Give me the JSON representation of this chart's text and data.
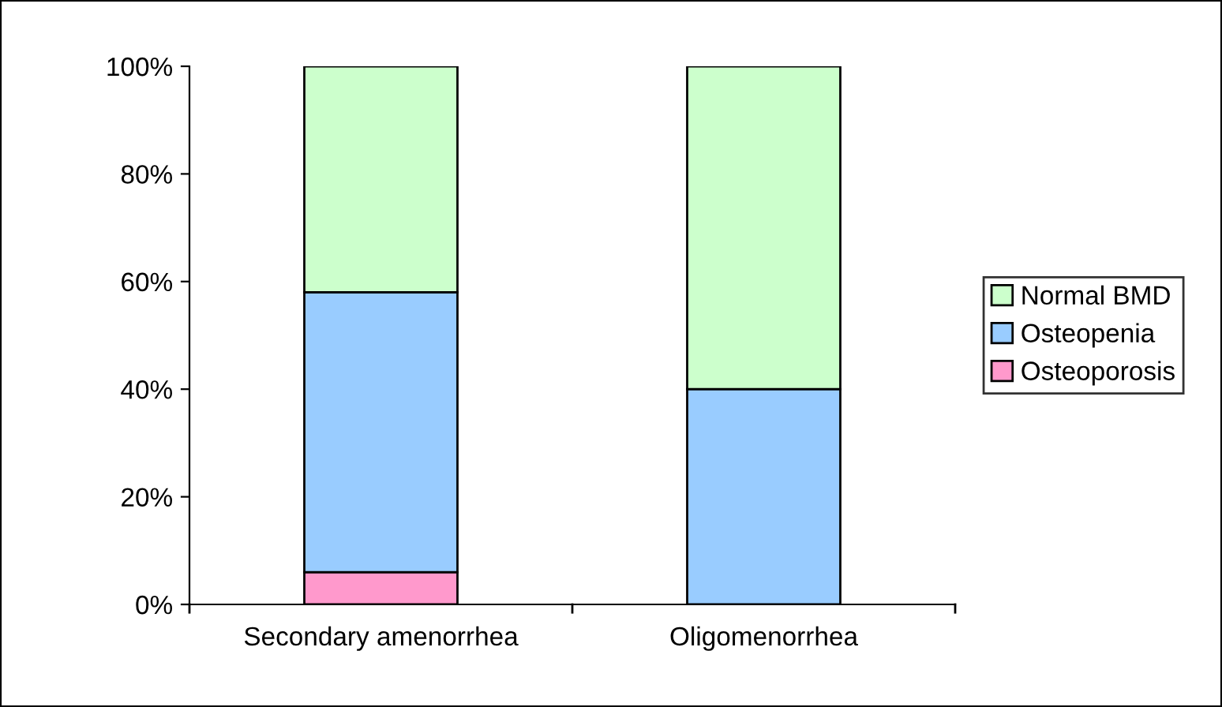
{
  "chart_data": {
    "type": "bar",
    "stacked": true,
    "categories": [
      "Secondary amenorrhea",
      "Oligomenorrhea"
    ],
    "series": [
      {
        "name": "Osteoporosis",
        "color": "#ff99cc",
        "values": [
          6,
          0
        ]
      },
      {
        "name": "Osteopenia",
        "color": "#99ccff",
        "values": [
          52,
          40
        ]
      },
      {
        "name": "Normal BMD",
        "color": "#ccffcc",
        "values": [
          42,
          60
        ]
      }
    ],
    "ylim": [
      0,
      100
    ],
    "yticks": [
      {
        "value": 0,
        "label": "0%"
      },
      {
        "value": 20,
        "label": "20%"
      },
      {
        "value": 40,
        "label": "40%"
      },
      {
        "value": 60,
        "label": "60%"
      },
      {
        "value": 80,
        "label": "80%"
      },
      {
        "value": 100,
        "label": "100%"
      }
    ],
    "grid": false,
    "legend": "right"
  }
}
